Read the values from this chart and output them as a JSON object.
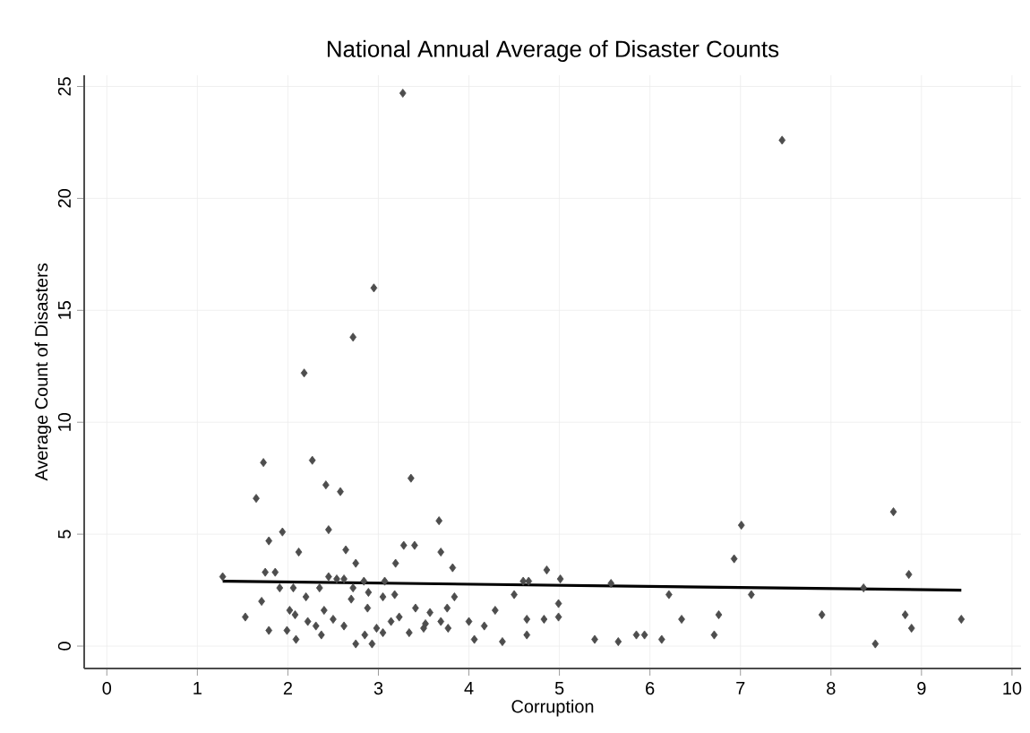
{
  "chart_data": {
    "type": "scatter",
    "title": "National Annual Average of Disaster Counts",
    "xlabel": "Corruption",
    "ylabel": "Average Count of Disasters",
    "xlim": [
      -0.25,
      10.1
    ],
    "ylim": [
      -1,
      25.5
    ],
    "xticks": [
      0,
      1,
      2,
      3,
      4,
      5,
      6,
      7,
      8,
      9,
      10
    ],
    "yticks": [
      0,
      5,
      10,
      15,
      20,
      25
    ],
    "grid": true,
    "series": [
      {
        "marker": "diamond",
        "color": "#4d4d4d",
        "x": [
          3.27,
          7.46,
          2.95,
          2.72,
          2.18,
          1.73,
          2.27,
          1.65,
          2.42,
          2.58,
          3.36,
          1.94,
          1.79,
          2.45,
          2.12,
          2.64,
          2.75,
          3.28,
          3.4,
          3.19,
          1.28,
          1.75,
          1.86,
          1.91,
          2.06,
          2.45,
          2.54,
          2.62,
          2.35,
          2.84,
          2.72,
          3.07,
          2.89,
          2.2,
          1.71,
          3.05,
          3.18,
          1.53,
          2.02,
          2.08,
          2.22,
          2.31,
          2.4,
          2.5,
          2.62,
          2.7,
          2.88,
          1.79,
          1.99,
          2.09,
          2.37,
          2.75,
          2.85,
          2.98,
          3.05,
          3.14,
          3.23,
          3.34,
          3.41,
          3.5,
          2.93,
          3.67,
          3.69,
          3.82,
          3.84,
          3.76,
          3.57,
          3.52,
          3.69,
          3.77,
          4.29,
          4.0,
          4.17,
          4.06,
          4.37,
          4.5,
          4.6,
          4.66,
          4.86,
          5.01,
          4.99,
          4.64,
          4.83,
          4.99,
          4.64,
          5.39,
          5.57,
          5.65,
          5.85,
          5.94,
          6.13,
          6.21,
          6.35,
          6.71,
          7.01,
          6.93,
          7.12,
          6.76,
          7.9,
          8.36,
          8.69,
          8.86,
          8.82,
          8.89,
          8.49,
          9.44
        ],
        "values": [
          24.7,
          22.6,
          16.0,
          13.8,
          12.2,
          8.2,
          8.3,
          6.6,
          7.2,
          6.9,
          7.5,
          5.1,
          4.7,
          5.2,
          4.2,
          4.3,
          3.7,
          4.5,
          4.5,
          3.7,
          3.1,
          3.3,
          3.3,
          2.6,
          2.6,
          3.1,
          3.0,
          3.0,
          2.6,
          2.9,
          2.6,
          2.9,
          2.4,
          2.2,
          2.0,
          2.2,
          2.3,
          1.3,
          1.6,
          1.4,
          1.1,
          0.9,
          1.6,
          1.2,
          0.9,
          2.1,
          1.7,
          0.7,
          0.7,
          0.3,
          0.5,
          0.1,
          0.5,
          0.8,
          0.6,
          1.1,
          1.3,
          0.6,
          1.7,
          0.8,
          0.1,
          5.6,
          4.2,
          3.5,
          2.2,
          1.7,
          1.5,
          1.0,
          1.1,
          0.8,
          1.6,
          1.1,
          0.9,
          0.3,
          0.2,
          2.3,
          2.9,
          2.9,
          3.4,
          3.0,
          1.9,
          1.2,
          1.2,
          1.3,
          0.5,
          0.3,
          2.8,
          0.2,
          0.5,
          0.5,
          0.3,
          2.3,
          1.2,
          0.5,
          5.4,
          3.9,
          2.3,
          1.4,
          1.4,
          2.6,
          6.0,
          3.2,
          1.4,
          0.8,
          0.1,
          1.2
        ]
      },
      {
        "type": "line",
        "color": "#000000",
        "x": [
          1.28,
          9.44
        ],
        "values": [
          2.9,
          2.5
        ]
      }
    ]
  }
}
